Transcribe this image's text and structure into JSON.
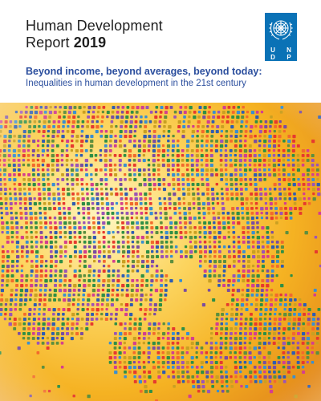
{
  "report": {
    "title_line1": "Human Development",
    "title_line2_prefix": "Report ",
    "title_year": "2019",
    "subtitle": "Beyond income, beyond averages, beyond today:",
    "subsubtitle": "Inequalities in human development in the 21st century"
  },
  "logo": {
    "letters": [
      "U",
      "N",
      "D",
      "P"
    ],
    "icon": "un-emblem-icon"
  },
  "artwork": {
    "icon": "dotted-globe-illustration",
    "colors": {
      "background_glow": "#fff3b0",
      "background_warm": "#f5b821",
      "background_edge": "#e58f1c",
      "dots": [
        "#e63a2e",
        "#f26a2c",
        "#2f8f45",
        "#5d8f3e",
        "#7b4ea0",
        "#9b55b5",
        "#2f5db1",
        "#3a8fd0",
        "#d43f8e",
        "#c9a023"
      ]
    }
  },
  "colors": {
    "title": "#1f1f1f",
    "subtitle": "#2c4f9e",
    "logo": "#0a72b6"
  }
}
